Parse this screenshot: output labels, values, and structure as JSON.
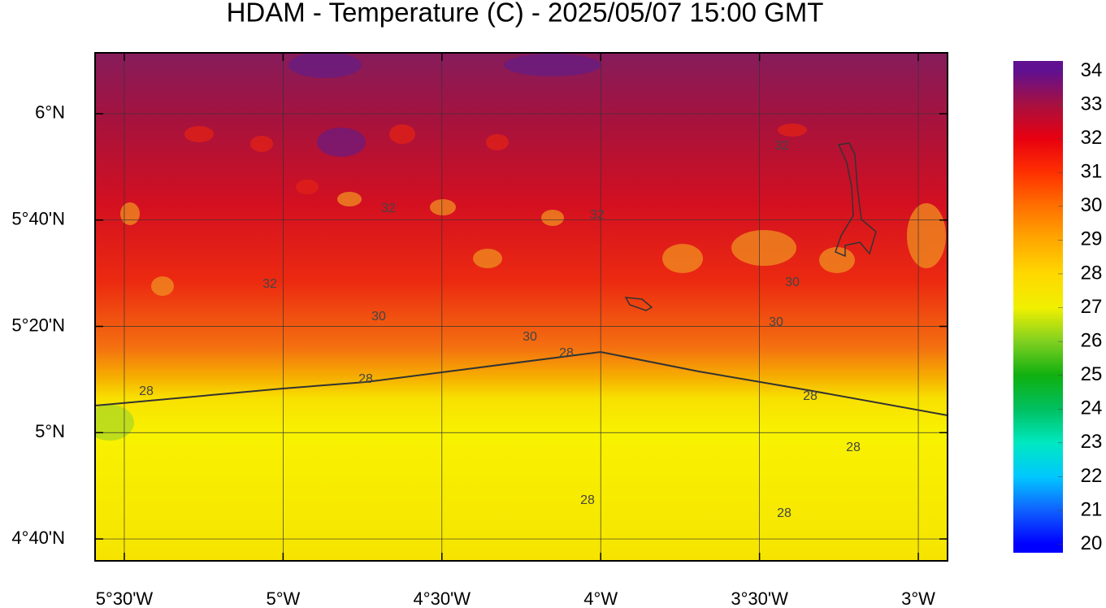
{
  "title": "HDAM - Temperature (C)  -  2025/05/07  15:00 GMT",
  "map": {
    "xlim": [
      -5.592,
      -2.908
    ],
    "ylim": [
      4.598,
      6.191
    ],
    "xticks": [
      {
        "value": -5.5,
        "label": "5°30'W"
      },
      {
        "value": -5,
        "label": "5°W"
      },
      {
        "value": -4.5,
        "label": "4°30'W"
      },
      {
        "value": -4,
        "label": "4°W"
      },
      {
        "value": -3.5,
        "label": "3°30'W"
      },
      {
        "value": -3,
        "label": "3°W"
      }
    ],
    "yticks": [
      {
        "value": 6,
        "label": "6°N"
      },
      {
        "value": 5.6667,
        "label": "5°40'N"
      },
      {
        "value": 5.3333,
        "label": "5°20'N"
      },
      {
        "value": 5,
        "label": "5°N"
      },
      {
        "value": 4.6667,
        "label": "4°40'N"
      }
    ]
  },
  "colorbar": {
    "lim": [
      19.75,
      34.3
    ],
    "ticks": [
      20,
      21,
      22,
      23,
      24,
      25,
      26,
      27,
      28,
      29,
      30,
      31,
      32,
      33,
      34
    ],
    "colors": [
      "#0000ff",
      "#1060ff",
      "#00c8ff",
      "#00e8c0",
      "#00c060",
      "#10b010",
      "#80d020",
      "#f0f000",
      "#ffd800",
      "#ffa800",
      "#ff7000",
      "#ff3000",
      "#e80010",
      "#a81040",
      "#601090"
    ]
  },
  "contour_labels": [
    "32",
    "32",
    "32",
    "32",
    "30",
    "30",
    "30",
    "30",
    "28",
    "28",
    "28",
    "28",
    "28",
    "28",
    "28"
  ]
}
